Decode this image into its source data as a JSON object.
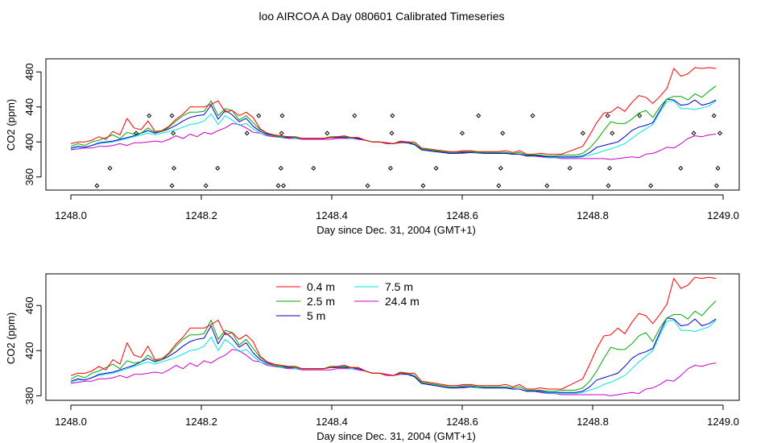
{
  "figure": {
    "title": "loo AIRCOA A  Day 080601  Calibrated Timeseries"
  },
  "colors": {
    "0.4 m": "#ff0000",
    "2.5 m": "#00aa00",
    "5 m": "#0000cc",
    "7.5 m": "#00e5e5",
    "24.4 m": "#cc00cc",
    "points": "#000000",
    "axes": "#000000"
  },
  "chart_data": [
    {
      "type": "line",
      "title": "",
      "xlabel": "Day since Dec. 31, 2004 (GMT+1)",
      "ylabel": "CO2 (ppm)",
      "xlim": [
        1248.0,
        1249.0
      ],
      "ylim": [
        345,
        495
      ],
      "xticks": [
        1248.0,
        1248.2,
        1248.4,
        1248.6,
        1248.8,
        1249.0
      ],
      "xtick_labels": [
        "1248.0",
        "1248.2",
        "1248.4",
        "1248.6",
        "1248.8",
        "1249.0"
      ],
      "yticks": [
        360,
        400,
        440,
        480
      ],
      "ytick_labels": [
        "360",
        "400",
        "440",
        "480"
      ],
      "legend": null,
      "scatter_points": {
        "x": [
          0.04,
          0.06,
          0.1,
          0.12,
          0.155,
          0.158,
          0.157,
          0.155,
          0.207,
          0.225,
          0.27,
          0.288,
          0.318,
          0.322,
          0.323,
          0.324,
          0.326,
          0.372,
          0.393,
          0.435,
          0.455,
          0.49,
          0.492,
          0.493,
          0.54,
          0.56,
          0.6,
          0.625,
          0.656,
          0.659,
          0.662,
          0.708,
          0.73,
          0.765,
          0.785,
          0.823,
          0.824,
          0.826,
          0.83,
          0.872,
          0.889,
          0.935,
          0.955,
          0.986,
          0.99,
          0.992,
          0.995
        ],
        "y": [
          350,
          370,
          410,
          430,
          350,
          370,
          410,
          430,
          350,
          370,
          410,
          430,
          350,
          370,
          410,
          430,
          350,
          370,
          410,
          430,
          350,
          370,
          410,
          430,
          350,
          370,
          410,
          430,
          350,
          370,
          410,
          430,
          350,
          370,
          410,
          430,
          350,
          370,
          410,
          430,
          350,
          370,
          410,
          430,
          350,
          370,
          410
        ],
        "x_offset": 1248.0
      },
      "series": [
        {
          "name": "0.4 m",
          "values": [
            398,
            400,
            400,
            402,
            406,
            403,
            412,
            408,
            427,
            416,
            414,
            424,
            412,
            413,
            418,
            426,
            432,
            440,
            440,
            440,
            443,
            447,
            434,
            436,
            430,
            434,
            428,
            415,
            410,
            408,
            407,
            406,
            406,
            404,
            404,
            404,
            404,
            405,
            406,
            407,
            405,
            405,
            402,
            400,
            400,
            399,
            398,
            401,
            400,
            400,
            393,
            392,
            391,
            390,
            389,
            389,
            390,
            390,
            389,
            389,
            389,
            389,
            390,
            388,
            390,
            386,
            386,
            387,
            386,
            386,
            386,
            389,
            392,
            395,
            408,
            422,
            433,
            434,
            440,
            435,
            445,
            453,
            451,
            444,
            452,
            461,
            484,
            475,
            478,
            485,
            484,
            485,
            484
          ]
        },
        {
          "name": "2.5 m",
          "values": [
            395,
            398,
            396,
            400,
            402,
            405,
            408,
            404,
            411,
            409,
            410,
            416,
            411,
            412,
            417,
            424,
            430,
            434,
            434,
            435,
            447,
            430,
            438,
            436,
            425,
            430,
            422,
            414,
            410,
            407,
            406,
            406,
            405,
            404,
            404,
            404,
            404,
            406,
            406,
            406,
            405,
            405,
            402,
            400,
            400,
            399,
            398,
            400,
            400,
            398,
            392,
            391,
            390,
            389,
            388,
            388,
            389,
            389,
            388,
            388,
            388,
            388,
            388,
            387,
            388,
            385,
            385,
            385,
            384,
            384,
            385,
            385,
            385,
            387,
            393,
            402,
            413,
            423,
            421,
            421,
            426,
            433,
            436,
            428,
            440,
            449,
            452,
            452,
            448,
            455,
            451,
            458,
            464
          ]
        },
        {
          "name": "5 m",
          "values": [
            393,
            395,
            394,
            396,
            399,
            400,
            401,
            403,
            405,
            407,
            410,
            413,
            410,
            412,
            415,
            419,
            424,
            428,
            430,
            431,
            442,
            426,
            436,
            431,
            423,
            427,
            418,
            412,
            409,
            407,
            406,
            405,
            405,
            404,
            404,
            404,
            404,
            405,
            405,
            405,
            405,
            404,
            402,
            400,
            400,
            399,
            398,
            400,
            399,
            397,
            391,
            390,
            389,
            388,
            387,
            387,
            388,
            388,
            388,
            387,
            387,
            387,
            387,
            386,
            386,
            384,
            384,
            384,
            383,
            383,
            383,
            383,
            383,
            384,
            388,
            394,
            396,
            398,
            400,
            406,
            413,
            417,
            419,
            422,
            436,
            449,
            448,
            442,
            443,
            448,
            442,
            444,
            448
          ]
        },
        {
          "name": "7.5 m",
          "values": [
            392,
            394,
            394,
            396,
            398,
            399,
            400,
            402,
            404,
            406,
            408,
            410,
            408,
            410,
            412,
            414,
            417,
            420,
            421,
            424,
            432,
            420,
            430,
            425,
            419,
            421,
            415,
            410,
            408,
            407,
            405,
            405,
            404,
            404,
            404,
            404,
            404,
            405,
            405,
            405,
            404,
            404,
            402,
            400,
            400,
            399,
            398,
            400,
            399,
            397,
            391,
            390,
            389,
            388,
            387,
            387,
            388,
            388,
            387,
            387,
            387,
            387,
            387,
            386,
            386,
            384,
            384,
            384,
            382,
            382,
            382,
            382,
            382,
            383,
            385,
            387,
            390,
            392,
            395,
            398,
            404,
            410,
            415,
            420,
            434,
            446,
            447,
            438,
            438,
            437,
            439,
            441,
            447
          ]
        },
        {
          "name": "24.4 m",
          "values": [
            391,
            392,
            393,
            393,
            395,
            395,
            396,
            398,
            396,
            399,
            399,
            400,
            401,
            400,
            403,
            407,
            404,
            409,
            406,
            411,
            409,
            413,
            416,
            421,
            420,
            416,
            411,
            410,
            407,
            406,
            405,
            404,
            404,
            403,
            403,
            403,
            403,
            403,
            404,
            404,
            404,
            403,
            402,
            400,
            400,
            398,
            398,
            399,
            399,
            397,
            391,
            390,
            389,
            388,
            387,
            387,
            387,
            388,
            387,
            387,
            387,
            387,
            387,
            386,
            386,
            384,
            384,
            383,
            382,
            382,
            381,
            381,
            381,
            381,
            381,
            381,
            381,
            380,
            381,
            382,
            383,
            382,
            386,
            387,
            390,
            394,
            393,
            398,
            404,
            407,
            406,
            408,
            409
          ]
        }
      ],
      "x_start": 1248.0,
      "x_step": 0.01075
    },
    {
      "type": "line",
      "title": "",
      "xlabel": "Day since Dec. 31, 2004 (GMT+1)",
      "ylabel": "CO2 (ppm)",
      "xlim": [
        1248.0,
        1249.0
      ],
      "ylim": [
        376,
        488
      ],
      "xticks": [
        1248.0,
        1248.2,
        1248.4,
        1248.6,
        1248.8,
        1249.0
      ],
      "xtick_labels": [
        "1248.0",
        "1248.2",
        "1248.4",
        "1248.6",
        "1248.8",
        "1249.0"
      ],
      "yticks": [
        380,
        420,
        460
      ],
      "ytick_labels": [
        "380",
        "420",
        "460"
      ],
      "legend": "top-left",
      "legend_labels": [
        "0.4 m",
        "2.5 m",
        "5 m",
        "7.5 m",
        "24.4 m"
      ],
      "same_series_as_panel": 0
    }
  ]
}
